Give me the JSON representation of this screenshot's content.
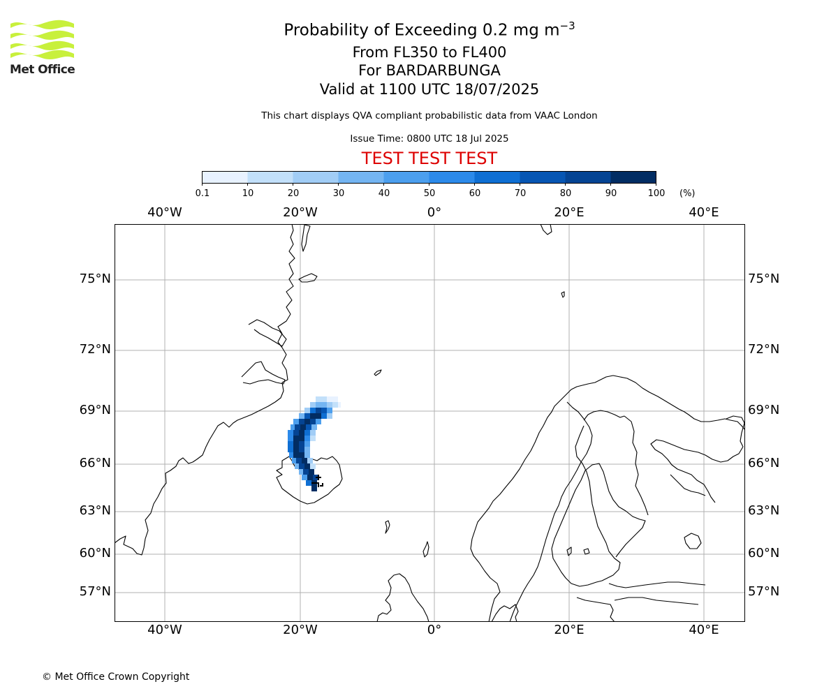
{
  "header": {
    "logo_text": "Met Office",
    "title_prefix": "Probability of Exceeding 0.2 mg m",
    "title_exponent": "−3",
    "level_line": "From FL350 to FL400",
    "volcano_line": "For BARDARBUNGA",
    "valid_line": "Valid at 1100 UTC 18/07/2025",
    "description": "This chart displays QVA compliant probabilistic data from VAAC London",
    "issue_time": "Issue Time: 0800 UTC 18 Jul 2025",
    "test_banner": "TEST TEST TEST",
    "test_color": "#dd0000"
  },
  "colorbar": {
    "unit": "(%)",
    "ticks": [
      "0.1",
      "10",
      "20",
      "30",
      "40",
      "50",
      "60",
      "70",
      "80",
      "90",
      "100"
    ],
    "colors": [
      "#e8f2ff",
      "#c2e0fa",
      "#a1cdf6",
      "#74b5f2",
      "#4c9fee",
      "#2c8aea",
      "#0f6fd3",
      "#0756b3",
      "#054493",
      "#022d63"
    ]
  },
  "map": {
    "lon_labels": [
      "40°W",
      "20°W",
      "0°",
      "20°E",
      "40°E"
    ],
    "lat_labels": [
      "75°N",
      "72°N",
      "69°N",
      "66°N",
      "63°N",
      "60°N",
      "57°N"
    ],
    "grid_color": "#b0b0b0",
    "coast_color": "#000000",
    "volcano_marker": "BARDARBUNGA"
  },
  "footer": {
    "copyright": "© Met Office Crown Copyright"
  }
}
